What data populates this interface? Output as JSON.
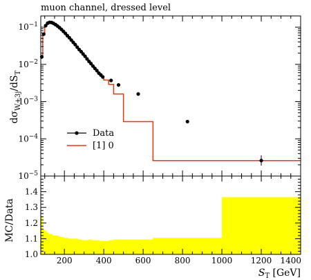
{
  "chart_data": [
    {
      "type": "line",
      "title": "muon channel, dressed level",
      "ylabel": "dσ_{W+3j}/dS_T",
      "xlim": [
        80,
        1400
      ],
      "ylim": [
        1e-05,
        0.2
      ],
      "yscale": "log",
      "grid": false,
      "legend_position": "lower-left",
      "bin_edges": [
        80,
        90,
        100,
        110,
        120,
        130,
        140,
        150,
        160,
        170,
        180,
        190,
        200,
        210,
        220,
        230,
        240,
        250,
        260,
        270,
        280,
        290,
        300,
        310,
        320,
        330,
        340,
        350,
        360,
        370,
        380,
        390,
        400,
        425,
        450,
        500,
        650,
        1000,
        1400
      ],
      "yticks": [
        {
          "v": 0.1,
          "b": "10",
          "e": "−1"
        },
        {
          "v": 0.01,
          "b": "10",
          "e": "−2"
        },
        {
          "v": 0.001,
          "b": "10",
          "e": "−3"
        },
        {
          "v": 0.0001,
          "b": "10",
          "e": "−4"
        },
        {
          "v": 1e-05,
          "b": "10",
          "e": "−5"
        }
      ],
      "series": [
        {
          "name": "Data",
          "style": "points",
          "color": "#000000",
          "x": [
            85,
            95,
            105,
            115,
            125,
            135,
            145,
            155,
            165,
            175,
            185,
            195,
            205,
            215,
            225,
            235,
            245,
            255,
            265,
            275,
            285,
            295,
            305,
            315,
            325,
            335,
            345,
            355,
            365,
            375,
            385,
            395,
            437,
            475,
            575,
            825,
            1200
          ],
          "y": [
            0.016,
            0.065,
            0.11,
            0.128,
            0.135,
            0.133,
            0.126,
            0.117,
            0.107,
            0.097,
            0.087,
            0.077,
            0.068,
            0.059,
            0.052,
            0.045,
            0.039,
            0.034,
            0.029,
            0.025,
            0.022,
            0.019,
            0.0165,
            0.014,
            0.012,
            0.0105,
            0.009,
            0.0078,
            0.0068,
            0.0058,
            0.0052,
            0.0046,
            0.0037,
            0.0028,
            0.0016,
            0.00029,
            2.6e-05
          ],
          "yerr_low": [
            0.014,
            0.06,
            0.105,
            0.124,
            0.131,
            0.129,
            0.122,
            0.113,
            0.103,
            0.094,
            0.084,
            0.074,
            0.065,
            0.057,
            0.05,
            0.043,
            0.037,
            0.032,
            0.027,
            0.023,
            0.02,
            0.017,
            0.015,
            0.0127,
            0.0109,
            0.0095,
            0.0081,
            0.007,
            0.0061,
            0.0052,
            0.0046,
            0.0041,
            0.0033,
            0.0025,
            0.00148,
            0.00027,
            1.9e-05
          ],
          "yerr_high": [
            0.018,
            0.07,
            0.115,
            0.132,
            0.139,
            0.137,
            0.13,
            0.121,
            0.111,
            0.1,
            0.09,
            0.08,
            0.071,
            0.061,
            0.054,
            0.047,
            0.041,
            0.036,
            0.031,
            0.027,
            0.024,
            0.021,
            0.018,
            0.0153,
            0.0131,
            0.0115,
            0.0099,
            0.0086,
            0.0075,
            0.0064,
            0.0058,
            0.0051,
            0.0041,
            0.0031,
            0.00172,
            0.00031,
            3.6e-05
          ]
        },
        {
          "name": "[1] 0",
          "style": "step",
          "color": "#ee3311",
          "values": [
            0.015,
            0.068,
            0.112,
            0.13,
            0.136,
            0.134,
            0.127,
            0.118,
            0.108,
            0.098,
            0.088,
            0.078,
            0.069,
            0.06,
            0.053,
            0.046,
            0.04,
            0.035,
            0.03,
            0.026,
            0.0225,
            0.0195,
            0.0168,
            0.0143,
            0.0123,
            0.0107,
            0.0092,
            0.008,
            0.0069,
            0.0059,
            0.0053,
            0.0047,
            0.0038,
            0.0029,
            0.0016,
            0.00029,
            2.6e-05,
            2.6e-05
          ]
        }
      ]
    },
    {
      "type": "area",
      "ylabel": "MC/Data",
      "xlabel": "S_T [GeV]",
      "xlim": [
        80,
        1400
      ],
      "ylim": [
        1.0,
        1.5
      ],
      "grid": false,
      "xticks": [
        200,
        400,
        600,
        800,
        1000,
        1200,
        1400
      ],
      "yticks": [
        {
          "v": 1.0,
          "label": "1.0"
        },
        {
          "v": 1.1,
          "label": "1.1"
        },
        {
          "v": 1.2,
          "label": "1.2"
        },
        {
          "v": 1.3,
          "label": "1.3"
        },
        {
          "v": 1.4,
          "label": "1.4"
        }
      ],
      "bin_edges": [
        80,
        90,
        100,
        110,
        120,
        130,
        140,
        150,
        160,
        170,
        180,
        190,
        200,
        210,
        220,
        230,
        240,
        250,
        260,
        270,
        280,
        290,
        300,
        310,
        320,
        330,
        340,
        350,
        360,
        370,
        380,
        390,
        400,
        425,
        450,
        500,
        650,
        1000,
        1400
      ],
      "band_color": "#ffff00",
      "band_low": [
        1.0,
        1.0,
        1.0,
        1.0,
        1.0,
        1.0,
        1.0,
        1.0,
        1.0,
        1.0,
        1.0,
        1.0,
        1.0,
        1.0,
        1.0,
        1.0,
        1.0,
        1.0,
        1.0,
        1.0,
        1.0,
        1.0,
        1.0,
        1.0,
        1.0,
        1.0,
        1.0,
        1.0,
        1.0,
        1.0,
        1.0,
        1.0,
        1.0,
        1.0,
        1.0,
        1.0,
        1.0,
        1.0
      ],
      "band_high": [
        1.24,
        1.16,
        1.15,
        1.14,
        1.13,
        1.13,
        1.12,
        1.12,
        1.12,
        1.115,
        1.11,
        1.11,
        1.105,
        1.105,
        1.1,
        1.1,
        1.1,
        1.1,
        1.1,
        1.095,
        1.095,
        1.09,
        1.09,
        1.09,
        1.095,
        1.095,
        1.09,
        1.09,
        1.09,
        1.09,
        1.085,
        1.085,
        1.085,
        1.09,
        1.095,
        1.095,
        1.105,
        1.365
      ]
    }
  ]
}
